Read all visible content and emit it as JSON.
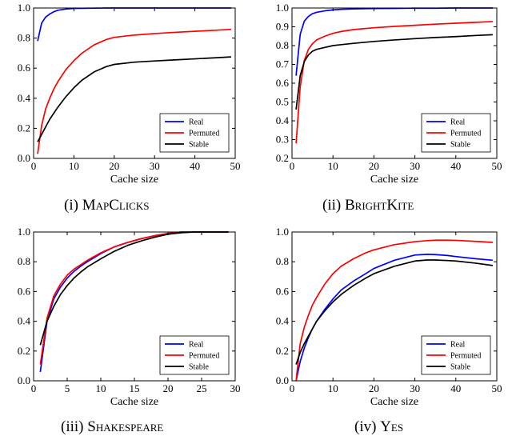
{
  "chart_data": [
    {
      "type": "line",
      "caption_num": "(i)",
      "caption_name": "MapClicks",
      "xlabel": "Cache size",
      "ylabel": "",
      "xlim": [
        0,
        50
      ],
      "ylim": [
        0.0,
        1.0
      ],
      "xticks": [
        "0",
        "10",
        "20",
        "30",
        "40",
        "50"
      ],
      "yticks": [
        "0.0",
        "0.2",
        "0.4",
        "0.6",
        "0.8",
        "1.0"
      ],
      "grid": false,
      "legend": "bottom-right",
      "x": [
        1,
        2,
        3,
        4,
        5,
        6,
        8,
        10,
        12,
        15,
        18,
        20,
        25,
        30,
        35,
        40,
        45,
        49
      ],
      "series": [
        {
          "name": "Real",
          "color": "#0000ff",
          "values": [
            0.78,
            0.9,
            0.94,
            0.96,
            0.975,
            0.985,
            0.993,
            0.997,
            0.998,
            0.999,
            1.0,
            1.0,
            1.0,
            1.0,
            1.0,
            1.0,
            1.0,
            1.0
          ]
        },
        {
          "name": "Permuted",
          "color": "#ff0000",
          "values": [
            0.03,
            0.22,
            0.33,
            0.4,
            0.46,
            0.51,
            0.59,
            0.65,
            0.7,
            0.755,
            0.79,
            0.805,
            0.82,
            0.83,
            0.838,
            0.845,
            0.852,
            0.858
          ]
        },
        {
          "name": "Stable",
          "color": "#000000",
          "values": [
            0.11,
            0.16,
            0.21,
            0.26,
            0.3,
            0.34,
            0.41,
            0.47,
            0.52,
            0.575,
            0.61,
            0.625,
            0.64,
            0.648,
            0.655,
            0.662,
            0.669,
            0.675
          ]
        }
      ]
    },
    {
      "type": "line",
      "caption_num": "(ii)",
      "caption_name": "BrightKite",
      "xlabel": "Cache size",
      "ylabel": "",
      "xlim": [
        0,
        50
      ],
      "ylim": [
        0.2,
        1.0
      ],
      "xticks": [
        "0",
        "10",
        "20",
        "30",
        "40",
        "50"
      ],
      "yticks": [
        "0.2",
        "0.3",
        "0.4",
        "0.5",
        "0.6",
        "0.7",
        "0.8",
        "0.9",
        "1.0"
      ],
      "grid": false,
      "legend": "bottom-right",
      "x": [
        1,
        2,
        3,
        4,
        5,
        6,
        8,
        10,
        12,
        15,
        20,
        25,
        30,
        35,
        40,
        45,
        49
      ],
      "series": [
        {
          "name": "Real",
          "color": "#0000ff",
          "values": [
            0.64,
            0.86,
            0.93,
            0.955,
            0.97,
            0.977,
            0.985,
            0.99,
            0.993,
            0.995,
            0.997,
            0.998,
            0.999,
            0.999,
            1.0,
            1.0,
            1.0
          ]
        },
        {
          "name": "Permuted",
          "color": "#ff0000",
          "values": [
            0.28,
            0.58,
            0.72,
            0.78,
            0.81,
            0.83,
            0.85,
            0.865,
            0.875,
            0.885,
            0.895,
            0.902,
            0.908,
            0.914,
            0.919,
            0.924,
            0.928
          ]
        },
        {
          "name": "Stable",
          "color": "#000000",
          "values": [
            0.46,
            0.64,
            0.715,
            0.75,
            0.77,
            0.78,
            0.79,
            0.8,
            0.805,
            0.812,
            0.822,
            0.83,
            0.837,
            0.843,
            0.848,
            0.854,
            0.858
          ]
        }
      ]
    },
    {
      "type": "line",
      "caption_num": "(iii)",
      "caption_name": "Shakespeare",
      "xlabel": "Cache size",
      "ylabel": "",
      "xlim": [
        0,
        30
      ],
      "ylim": [
        0.0,
        1.0
      ],
      "xticks": [
        "0",
        "5",
        "10",
        "15",
        "20",
        "25",
        "30"
      ],
      "yticks": [
        "0.0",
        "0.2",
        "0.4",
        "0.6",
        "0.8",
        "1.0"
      ],
      "grid": false,
      "legend": "bottom-right",
      "x": [
        1,
        2,
        3,
        4,
        5,
        6,
        7,
        8,
        10,
        12,
        14,
        16,
        18,
        20,
        22,
        24,
        26,
        28,
        29
      ],
      "series": [
        {
          "name": "Real",
          "color": "#0000ff",
          "values": [
            0.06,
            0.4,
            0.55,
            0.63,
            0.69,
            0.735,
            0.77,
            0.8,
            0.855,
            0.9,
            0.93,
            0.955,
            0.975,
            0.99,
            1.0,
            1.0,
            1.0,
            1.0,
            1.0
          ]
        },
        {
          "name": "Permuted",
          "color": "#ff0000",
          "values": [
            0.11,
            0.42,
            0.57,
            0.65,
            0.71,
            0.75,
            0.78,
            0.81,
            0.86,
            0.9,
            0.93,
            0.955,
            0.975,
            0.99,
            1.0,
            1.0,
            1.0,
            1.0,
            1.0
          ]
        },
        {
          "name": "Stable",
          "color": "#000000",
          "values": [
            0.24,
            0.4,
            0.5,
            0.58,
            0.64,
            0.69,
            0.73,
            0.765,
            0.82,
            0.87,
            0.91,
            0.94,
            0.965,
            0.985,
            0.995,
            1.0,
            1.0,
            1.0,
            1.0
          ]
        }
      ]
    },
    {
      "type": "line",
      "caption_num": "(iv)",
      "caption_name": "Yes",
      "xlabel": "Cache size",
      "ylabel": "",
      "xlim": [
        0,
        50
      ],
      "ylim": [
        0.0,
        1.0
      ],
      "xticks": [
        "0",
        "10",
        "20",
        "30",
        "40",
        "50"
      ],
      "yticks": [
        "0.0",
        "0.2",
        "0.4",
        "0.6",
        "0.8",
        "1.0"
      ],
      "grid": false,
      "legend": "bottom-right",
      "x": [
        1,
        2,
        3,
        4,
        5,
        6,
        8,
        10,
        12,
        15,
        18,
        20,
        25,
        30,
        33,
        35,
        38,
        40,
        45,
        49
      ],
      "series": [
        {
          "name": "Real",
          "color": "#0000ff",
          "values": [
            0.0,
            0.13,
            0.22,
            0.29,
            0.35,
            0.4,
            0.48,
            0.55,
            0.61,
            0.67,
            0.72,
            0.755,
            0.81,
            0.845,
            0.85,
            0.848,
            0.842,
            0.835,
            0.82,
            0.81
          ]
        },
        {
          "name": "Permuted",
          "color": "#ff0000",
          "values": [
            0.0,
            0.25,
            0.36,
            0.44,
            0.51,
            0.56,
            0.65,
            0.72,
            0.77,
            0.82,
            0.86,
            0.88,
            0.915,
            0.935,
            0.942,
            0.945,
            0.945,
            0.944,
            0.937,
            0.93
          ]
        },
        {
          "name": "Stable",
          "color": "#000000",
          "values": [
            0.11,
            0.19,
            0.25,
            0.3,
            0.35,
            0.4,
            0.47,
            0.53,
            0.58,
            0.64,
            0.69,
            0.72,
            0.77,
            0.805,
            0.812,
            0.812,
            0.808,
            0.805,
            0.79,
            0.775
          ]
        }
      ]
    }
  ]
}
